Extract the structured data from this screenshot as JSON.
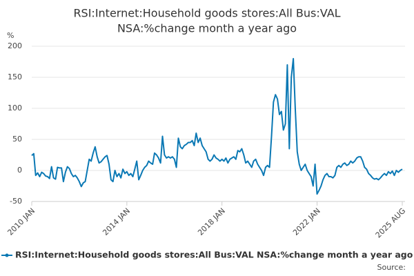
{
  "chart_data": {
    "type": "line",
    "title": "RSI:Internet:Household goods stores:All Bus:VAL NSA:%change month a year ago",
    "y_label": "%",
    "source": "Source:",
    "x": [
      "2010 JAN",
      "2010 FEB",
      "2010 MAR",
      "2010 APR",
      "2010 MAY",
      "2010 JUN",
      "2010 JUL",
      "2010 AUG",
      "2010 SEP",
      "2010 OCT",
      "2010 NOV",
      "2010 DEC",
      "2011 JAN",
      "2011 FEB",
      "2011 MAR",
      "2011 APR",
      "2011 MAY",
      "2011 JUN",
      "2011 JUL",
      "2011 AUG",
      "2011 SEP",
      "2011 OCT",
      "2011 NOV",
      "2011 DEC",
      "2012 JAN",
      "2012 FEB",
      "2012 MAR",
      "2012 APR",
      "2012 MAY",
      "2012 JUN",
      "2012 JUL",
      "2012 AUG",
      "2012 SEP",
      "2012 OCT",
      "2012 NOV",
      "2012 DEC",
      "2013 JAN",
      "2013 FEB",
      "2013 MAR",
      "2013 APR",
      "2013 MAY",
      "2013 JUN",
      "2013 JUL",
      "2013 AUG",
      "2013 SEP",
      "2013 OCT",
      "2013 NOV",
      "2013 DEC",
      "2014 JAN",
      "2014 FEB",
      "2014 MAR",
      "2014 APR",
      "2014 MAY",
      "2014 JUN",
      "2014 JUL",
      "2014 AUG",
      "2014 SEP",
      "2014 OCT",
      "2014 NOV",
      "2014 DEC",
      "2015 JAN",
      "2015 FEB",
      "2015 MAR",
      "2015 APR",
      "2015 MAY",
      "2015 JUN",
      "2015 JUL",
      "2015 AUG",
      "2015 SEP",
      "2015 OCT",
      "2015 NOV",
      "2015 DEC",
      "2016 JAN",
      "2016 FEB",
      "2016 MAR",
      "2016 APR",
      "2016 MAY",
      "2016 JUN",
      "2016 JUL",
      "2016 AUG",
      "2016 SEP",
      "2016 OCT",
      "2016 NOV",
      "2016 DEC",
      "2017 JAN",
      "2017 FEB",
      "2017 MAR",
      "2017 APR",
      "2017 MAY",
      "2017 JUN",
      "2017 JUL",
      "2017 AUG",
      "2017 SEP",
      "2017 OCT",
      "2017 NOV",
      "2017 DEC",
      "2018 JAN",
      "2018 FEB",
      "2018 MAR",
      "2018 APR",
      "2018 MAY",
      "2018 JUN",
      "2018 JUL",
      "2018 AUG",
      "2018 SEP",
      "2018 OCT",
      "2018 NOV",
      "2018 DEC",
      "2019 JAN",
      "2019 FEB",
      "2019 MAR",
      "2019 APR",
      "2019 MAY",
      "2019 JUN",
      "2019 JUL",
      "2019 AUG",
      "2019 SEP",
      "2019 OCT",
      "2019 NOV",
      "2019 DEC",
      "2020 JAN",
      "2020 FEB",
      "2020 MAR",
      "2020 APR",
      "2020 MAY",
      "2020 JUN",
      "2020 JUL",
      "2020 AUG",
      "2020 SEP",
      "2020 OCT",
      "2020 NOV",
      "2020 DEC",
      "2021 JAN",
      "2021 FEB",
      "2021 MAR",
      "2021 APR",
      "2021 MAY",
      "2021 JUN",
      "2021 JUL",
      "2021 AUG",
      "2021 SEP",
      "2021 OCT",
      "2021 NOV",
      "2021 DEC",
      "2022 JAN",
      "2022 FEB",
      "2022 MAR",
      "2022 APR",
      "2022 MAY",
      "2022 JUN",
      "2022 JUL",
      "2022 AUG",
      "2022 SEP",
      "2022 OCT",
      "2022 NOV",
      "2022 DEC",
      "2023 JAN",
      "2023 FEB",
      "2023 MAR",
      "2023 APR",
      "2023 MAY",
      "2023 JUN",
      "2023 JUL",
      "2023 AUG",
      "2023 SEP",
      "2023 OCT",
      "2023 NOV",
      "2023 DEC",
      "2024 JAN",
      "2024 FEB",
      "2024 MAR",
      "2024 APR",
      "2024 MAY",
      "2024 JUN",
      "2024 JUL",
      "2024 AUG",
      "2024 SEP",
      "2024 OCT",
      "2024 NOV",
      "2024 DEC",
      "2025 JAN",
      "2025 FEB",
      "2025 MAR",
      "2025 APR",
      "2025 MAY",
      "2025 JUN",
      "2025 JUL",
      "2025 AUG"
    ],
    "series": [
      {
        "name": "RSI:Internet:Household goods stores:All Bus:VAL NSA:%change month a year ago",
        "color": "#0a78b4",
        "values": [
          24,
          27,
          -8,
          -4,
          -10,
          -3,
          -5,
          -9,
          -10,
          -13,
          6,
          -12,
          -14,
          5,
          4,
          4,
          -18,
          -3,
          6,
          3,
          -5,
          -10,
          -8,
          -12,
          -18,
          -26,
          -20,
          -18,
          0,
          18,
          15,
          28,
          38,
          22,
          12,
          14,
          18,
          22,
          24,
          10,
          -15,
          -18,
          0,
          -10,
          -5,
          -12,
          2,
          -5,
          -2,
          -8,
          -5,
          -10,
          2,
          15,
          -15,
          -8,
          0,
          5,
          8,
          15,
          12,
          10,
          28,
          25,
          20,
          12,
          55,
          25,
          20,
          22,
          20,
          22,
          18,
          5,
          52,
          38,
          35,
          40,
          42,
          45,
          45,
          48,
          40,
          60,
          45,
          52,
          40,
          35,
          30,
          18,
          15,
          18,
          25,
          20,
          18,
          15,
          18,
          15,
          20,
          12,
          18,
          20,
          22,
          18,
          32,
          30,
          35,
          25,
          12,
          15,
          10,
          5,
          15,
          18,
          10,
          5,
          0,
          -8,
          5,
          8,
          5,
          55,
          110,
          122,
          115,
          90,
          95,
          65,
          75,
          170,
          35,
          150,
          180,
          100,
          30,
          10,
          0,
          5,
          10,
          0,
          -5,
          -10,
          -25,
          10,
          -38,
          -32,
          -25,
          -15,
          -8,
          -5,
          -10,
          -10,
          -12,
          -8,
          5,
          8,
          5,
          10,
          12,
          8,
          10,
          15,
          12,
          15,
          20,
          22,
          22,
          15,
          5,
          2,
          -5,
          -8,
          -12,
          -14,
          -13,
          -15,
          -12,
          -8,
          -5,
          -8,
          -2,
          -5,
          -1,
          -8,
          0,
          -3,
          0,
          2
        ]
      }
    ],
    "xticks": [
      "2010 JAN",
      "2014 JAN",
      "2018 JAN",
      "2022 JAN",
      "2025 AUG"
    ],
    "ylim": [
      -50,
      200
    ],
    "yticks": [
      -50,
      0,
      50,
      100,
      150,
      200
    ],
    "grid": true
  }
}
